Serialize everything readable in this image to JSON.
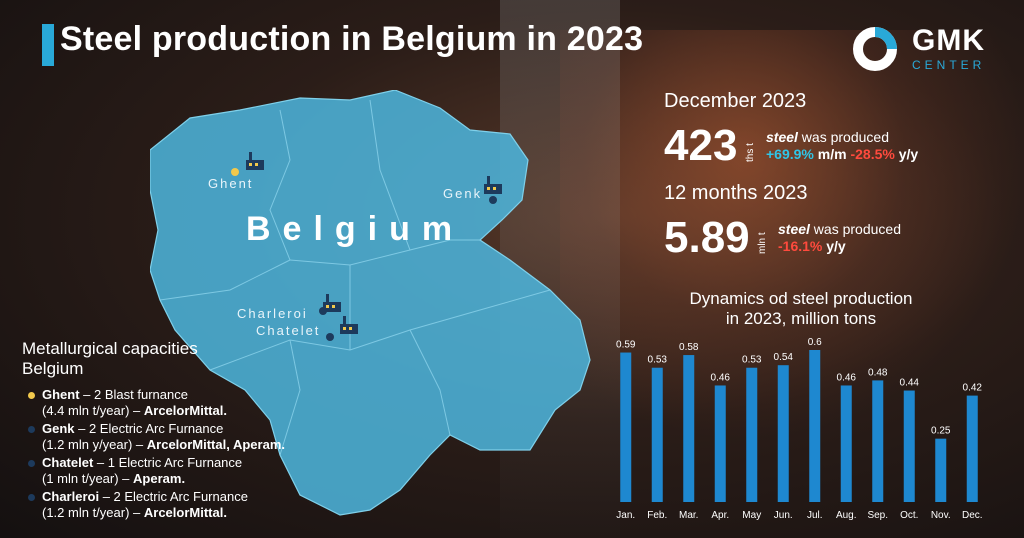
{
  "title": "Steel production in Belgium in 2023",
  "logo": {
    "main": "GMK",
    "sub": "CENTER"
  },
  "map": {
    "country": "Belgium",
    "cities": [
      "Ghent",
      "Genk",
      "Charleroi",
      "Chatelet"
    ]
  },
  "december": {
    "heading": "December 2023",
    "value": "423",
    "unit": "ths t",
    "produced_em": "steel",
    "produced_rest": " was produced",
    "mm_value": "+69.9%",
    "mm_label": " m/m ",
    "yy_value": "-28.5%",
    "yy_label": " y/y"
  },
  "year": {
    "heading": "12 months 2023",
    "value": "5.89",
    "unit": "mln t",
    "produced_em": "steel",
    "produced_rest": " was produced",
    "yy_value": "-16.1%",
    "yy_label": " y/y"
  },
  "capacities": {
    "title_line1": "Metallurgical capacities",
    "title_line2": "Belgium",
    "items": [
      {
        "name": "Ghent",
        "line1": " – 2 Blast furnance",
        "line2a": "(4.4 mln t/year) – ",
        "line2b": "ArcelorMittal.",
        "color": "#f2c94c"
      },
      {
        "name": "Genk",
        "line1": " – 2 Electric Arc Furnance",
        "line2a": "(1.2 mln y/year) – ",
        "line2b": "ArcelorMittal, Aperam.",
        "color": "#1d3a5c"
      },
      {
        "name": "Chatelet",
        "line1": " – 1 Electric Arc Furnance",
        "line2a": "(1 mln t/year) – ",
        "line2b": "Aperam.",
        "color": "#1d3a5c"
      },
      {
        "name": "Charleroi",
        "line1": " – 2 Electric Arc Furnance",
        "line2a": "(1.2 mln t/year) – ",
        "line2b": "ArcelorMittal.",
        "color": "#1d3a5c"
      }
    ]
  },
  "colors": {
    "accent": "#29a9d8",
    "bar": "#1e88d0",
    "map": "#4cb3d9",
    "negative": "#ff4a3d",
    "positive": "#2fc6e8"
  },
  "chart_data": {
    "type": "bar",
    "title": "Dynamics od steel production in 2023, million tons",
    "title_line1": "Dynamics od steel production",
    "title_line2": "in 2023, million tons",
    "categories": [
      "Jan.",
      "Feb.",
      "Mar.",
      "Apr.",
      "May",
      "Jun.",
      "Jul.",
      "Aug.",
      "Sep.",
      "Oct.",
      "Nov.",
      "Dec."
    ],
    "values": [
      0.59,
      0.53,
      0.58,
      0.46,
      0.53,
      0.54,
      0.6,
      0.46,
      0.48,
      0.44,
      0.25,
      0.42
    ],
    "value_labels": [
      "0.59",
      "0.53",
      "0.58",
      "0.46",
      "0.53",
      "0.54",
      "0.6",
      "0.46",
      "0.48",
      "0.44",
      "0.25",
      "0.42"
    ],
    "ylim": [
      0,
      0.6
    ],
    "grid": false,
    "legend": "none"
  }
}
